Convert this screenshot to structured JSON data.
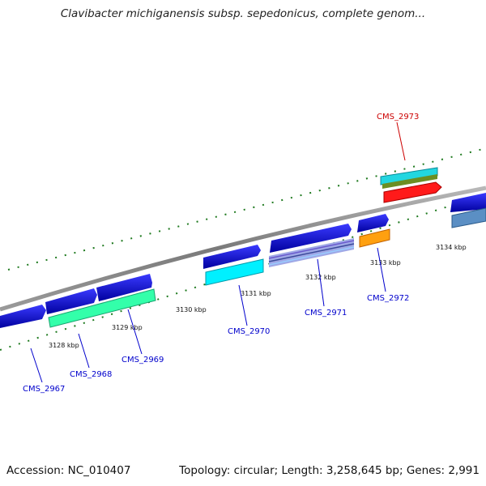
{
  "title": "Clavibacter michiganensis subsp. sepedonicus, complete genom...",
  "footer": {
    "accession": "Accession: NC_010407",
    "summary": "Topology: circular; Length: 3,258,645 bp; Genes: 2,991"
  },
  "ticks": [
    {
      "label": "3128 kbp"
    },
    {
      "label": "3129 kbp"
    },
    {
      "label": "3130 kbp"
    },
    {
      "label": "3131 kbp"
    },
    {
      "label": "3132 kbp"
    },
    {
      "label": "3133 kbp"
    },
    {
      "label": "3134 kbp"
    }
  ],
  "genes": [
    {
      "name": "CMS_2967",
      "color": "#0000cc"
    },
    {
      "name": "CMS_2968",
      "color": "#0000cc"
    },
    {
      "name": "CMS_2969",
      "color": "#0000cc"
    },
    {
      "name": "CMS_2970",
      "color": "#0000cc"
    },
    {
      "name": "CMS_2971",
      "color": "#0000cc"
    },
    {
      "name": "CMS_2972",
      "color": "#0000cc"
    },
    {
      "name": "CMS_2973",
      "color": "#cc0000"
    }
  ],
  "colors": {
    "backbone": "#808080",
    "tick_mark": "#1f7a1f",
    "cds_forward": "#1a1aff",
    "cds_reverse": "#1a1aff",
    "feature_cyan": "#00e5ff",
    "feature_green": "#33ff99",
    "feature_orange": "#ff9900",
    "feature_red": "#ff1a1a",
    "feature_olive": "#6b8e23",
    "feature_steel": "#4682b4",
    "feature_purple": "#9966cc"
  }
}
